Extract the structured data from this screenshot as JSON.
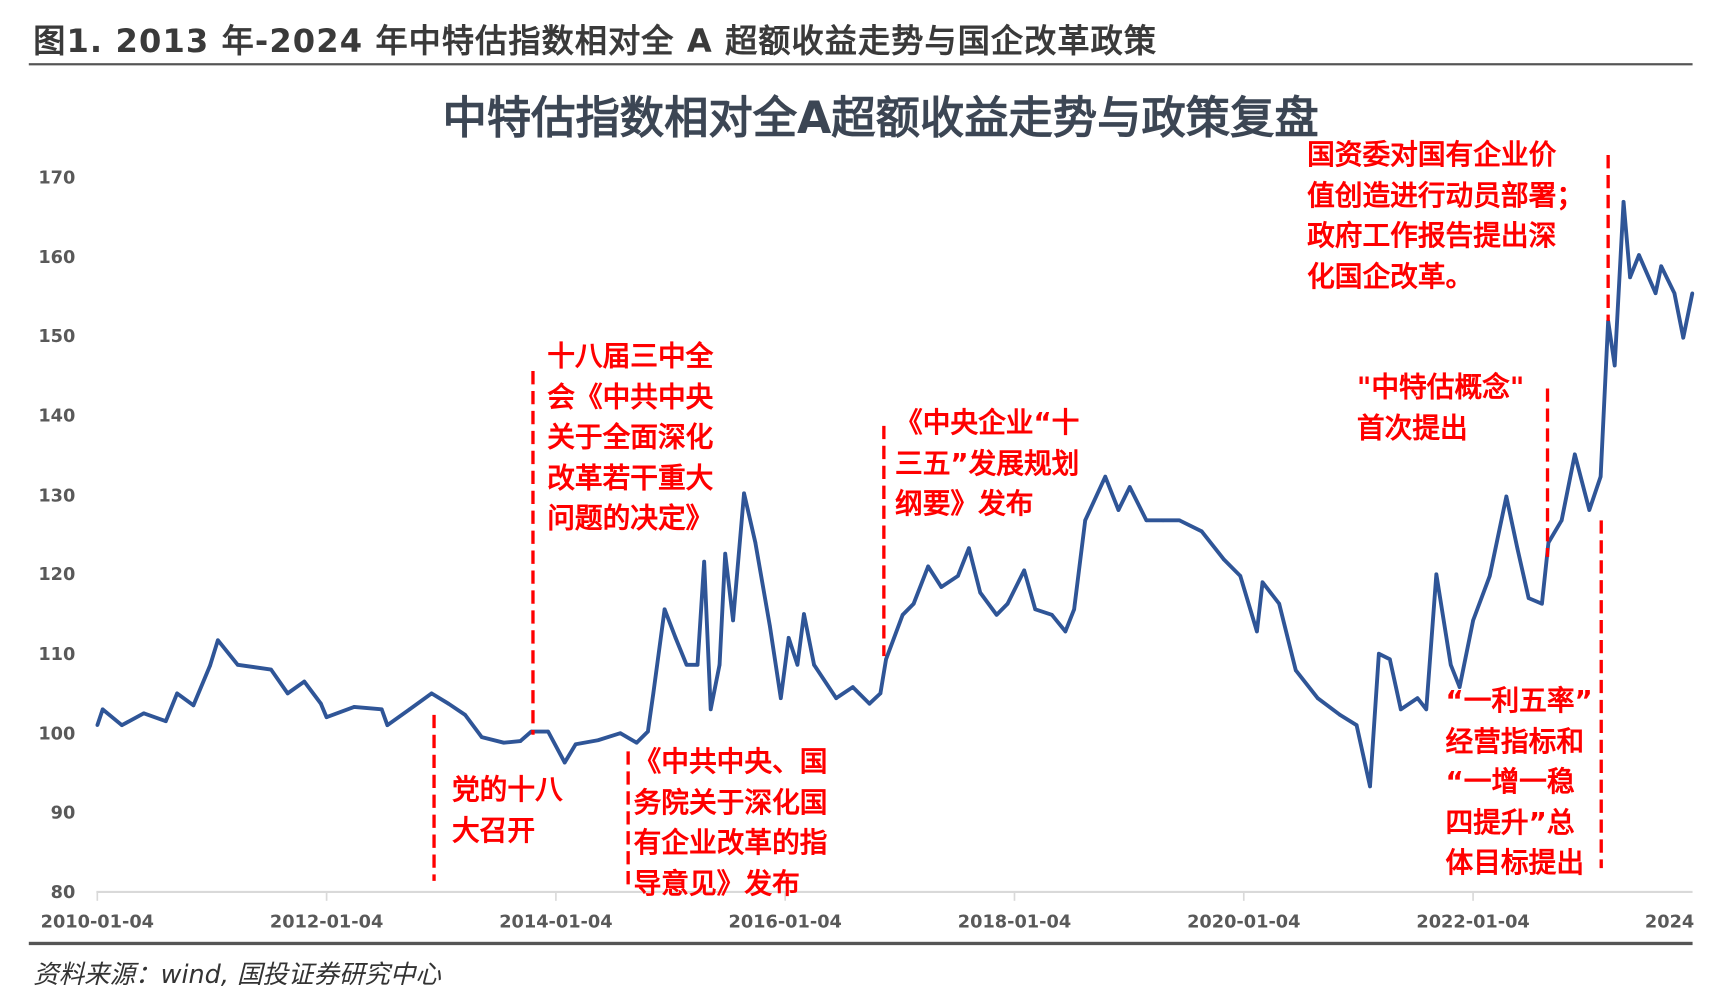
{
  "header": {
    "figure_title": "图1. 2013 年-2024 年中特估指数相对全 A 超额收益走势与国企改革政策"
  },
  "footer": {
    "source": "资料来源：wind, 国投证券研究中心"
  },
  "colors": {
    "series": "#2f5597",
    "annotation": "#ff0000",
    "axis": "#d9d9d9",
    "text": "#595959"
  },
  "chart_data": {
    "type": "line",
    "title": "中特估指数相对全A超额收益走势与政策复盘",
    "xlabel": "",
    "ylabel": "",
    "ylim": [
      80,
      170
    ],
    "yticks": [
      "80",
      "90",
      "100",
      "110",
      "120",
      "130",
      "140",
      "150",
      "160",
      "170"
    ],
    "xticks": [
      {
        "date": "2010-01-04",
        "label": "2010-01-04"
      },
      {
        "date": "2012-01-04",
        "label": "2012-01-04"
      },
      {
        "date": "2014-01-04",
        "label": "2014-01-04"
      },
      {
        "date": "2016-01-04",
        "label": "2016-01-04"
      },
      {
        "date": "2018-01-04",
        "label": "2018-01-04"
      },
      {
        "date": "2020-01-04",
        "label": "2020-01-04"
      },
      {
        "date": "2022-01-04",
        "label": "2022-01-04"
      },
      {
        "date": "2024-01-04",
        "label": "2024"
      }
    ],
    "grid": false,
    "legend": "none",
    "series": [
      {
        "points": [
          [
            "2010-01-04",
            101
          ],
          [
            "2010-01-21",
            103
          ],
          [
            "2010-03-23",
            101
          ],
          [
            "2010-06-01",
            102.5
          ],
          [
            "2010-08-10",
            101.5
          ],
          [
            "2010-09-15",
            105
          ],
          [
            "2010-11-06",
            103.5
          ],
          [
            "2010-12-29",
            108.5
          ],
          [
            "2011-01-23",
            111.7
          ],
          [
            "2011-03-27",
            108.6
          ],
          [
            "2011-07-11",
            108
          ],
          [
            "2011-09-02",
            105
          ],
          [
            "2011-10-25",
            106.5
          ],
          [
            "2011-12-17",
            103.7
          ],
          [
            "2012-01-04",
            102
          ],
          [
            "2012-04-01",
            103.3
          ],
          [
            "2012-06-28",
            103
          ],
          [
            "2012-07-16",
            101
          ],
          [
            "2012-09-25",
            103
          ],
          [
            "2012-12-04",
            105
          ],
          [
            "2013-01-27",
            103.7
          ],
          [
            "2013-03-21",
            102.3
          ],
          [
            "2013-05-13",
            99.5
          ],
          [
            "2013-07-22",
            98.8
          ],
          [
            "2013-09-13",
            99
          ],
          [
            "2013-10-18",
            100.2
          ],
          [
            "2013-12-10",
            100.2
          ],
          [
            "2014-02-01",
            96.3
          ],
          [
            "2014-03-08",
            98.6
          ],
          [
            "2014-05-18",
            99.1
          ],
          [
            "2014-07-28",
            100
          ],
          [
            "2014-09-18",
            98.8
          ],
          [
            "2014-10-24",
            100.2
          ],
          [
            "2014-11-10",
            105
          ],
          [
            "2014-12-16",
            115.6
          ],
          [
            "2015-01-20",
            112
          ],
          [
            "2015-02-24",
            108.6
          ],
          [
            "2015-03-31",
            108.6
          ],
          [
            "2015-04-21",
            121.6
          ],
          [
            "2015-05-12",
            103
          ],
          [
            "2015-06-09",
            108.6
          ],
          [
            "2015-06-27",
            122.6
          ],
          [
            "2015-07-22",
            114.2
          ],
          [
            "2015-08-26",
            130.2
          ],
          [
            "2015-10-01",
            124
          ],
          [
            "2015-11-16",
            113.5
          ],
          [
            "2015-12-21",
            104.4
          ],
          [
            "2016-01-15",
            112
          ],
          [
            "2016-02-12",
            108.6
          ],
          [
            "2016-03-04",
            115
          ],
          [
            "2016-04-05",
            108.6
          ],
          [
            "2016-06-15",
            104.4
          ],
          [
            "2016-08-07",
            105.8
          ],
          [
            "2016-09-29",
            103.7
          ],
          [
            "2016-11-03",
            105
          ],
          [
            "2016-11-21",
            109.3
          ],
          [
            "2017-01-13",
            114.9
          ],
          [
            "2017-02-17",
            116.3
          ],
          [
            "2017-04-04",
            121
          ],
          [
            "2017-05-16",
            118.4
          ],
          [
            "2017-07-08",
            119.8
          ],
          [
            "2017-08-12",
            123.3
          ],
          [
            "2017-09-17",
            117.7
          ],
          [
            "2017-11-08",
            114.9
          ],
          [
            "2017-12-13",
            116.3
          ],
          [
            "2018-02-04",
            120.5
          ],
          [
            "2018-03-11",
            115.6
          ],
          [
            "2018-05-03",
            114.9
          ],
          [
            "2018-06-15",
            112.8
          ],
          [
            "2018-07-13",
            115.6
          ],
          [
            "2018-08-17",
            126.8
          ],
          [
            "2018-10-20",
            132.3
          ],
          [
            "2018-12-01",
            128.1
          ],
          [
            "2019-01-06",
            131
          ],
          [
            "2019-02-28",
            126.8
          ],
          [
            "2019-04-22",
            126.8
          ],
          [
            "2019-06-13",
            126.8
          ],
          [
            "2019-08-23",
            125.4
          ],
          [
            "2019-11-01",
            121.9
          ],
          [
            "2019-12-24",
            119.8
          ],
          [
            "2020-02-15",
            112.8
          ],
          [
            "2020-03-04",
            119
          ],
          [
            "2020-04-26",
            116.3
          ],
          [
            "2020-06-18",
            107.9
          ],
          [
            "2020-08-27",
            104.4
          ],
          [
            "2020-11-06",
            102.3
          ],
          [
            "2020-12-29",
            101
          ],
          [
            "2021-02-10",
            93.3
          ],
          [
            "2021-03-10",
            110
          ],
          [
            "2021-04-14",
            109.3
          ],
          [
            "2021-05-19",
            103
          ],
          [
            "2021-07-11",
            104.4
          ],
          [
            "2021-08-08",
            103
          ],
          [
            "2021-09-09",
            120
          ],
          [
            "2021-10-25",
            108.6
          ],
          [
            "2021-11-22",
            105.8
          ],
          [
            "2022-01-04",
            114.2
          ],
          [
            "2022-02-26",
            119.8
          ],
          [
            "2022-04-20",
            129.8
          ],
          [
            "2022-05-25",
            123.3
          ],
          [
            "2022-06-30",
            117
          ],
          [
            "2022-08-11",
            116.3
          ],
          [
            "2022-09-01",
            124
          ],
          [
            "2022-10-13",
            126.8
          ],
          [
            "2022-11-24",
            135.1
          ],
          [
            "2023-01-09",
            128.1
          ],
          [
            "2023-02-14",
            132.3
          ],
          [
            "2023-03-10",
            151.9
          ],
          [
            "2023-03-31",
            146.3
          ],
          [
            "2023-04-28",
            166.9
          ],
          [
            "2023-05-19",
            157.4
          ],
          [
            "2023-06-16",
            160.2
          ],
          [
            "2023-08-08",
            155.4
          ],
          [
            "2023-08-26",
            158.8
          ],
          [
            "2023-10-07",
            155.4
          ],
          [
            "2023-11-04",
            149.8
          ],
          [
            "2023-12-03",
            155.4
          ]
        ]
      }
    ],
    "annotations": [
      {
        "date": "2012-12-12",
        "from": 102.3,
        "to": 81.4,
        "lines": [
          "党的十八",
          "大召开"
        ]
      },
      {
        "date": "2013-10-23",
        "from": 145.6,
        "to": 99.8,
        "lines": [
          "十八届三中全",
          "会《中共中央",
          "关于全面深化",
          "改革若干重大",
          "问题的决定》"
        ]
      },
      {
        "date": "2014-08-22",
        "from": 97.7,
        "to": 80.9,
        "lines": [
          "《中共中央、国",
          "务院关于深化国",
          "有企业改革的指",
          "导意见》发布"
        ]
      },
      {
        "date": "2016-11-14",
        "from": 138.7,
        "to": 109.7,
        "lines": [
          "《中央企业“十",
          "三五”发展规划",
          "纲要》发布"
        ]
      },
      {
        "date": "2022-08-29",
        "from": 143.4,
        "to": 122.2,
        "lines": [
          "\"中特估概念\"",
          "首次提出"
        ]
      },
      {
        "date": "2023-02-16",
        "from": 126.8,
        "to": 83,
        "lines": [
          "“一利五率”",
          "经营指标和",
          "“一增一稳",
          "四提升”总",
          "体目标提出"
        ]
      },
      {
        "date": "2023-03-10",
        "from": 172.8,
        "to": 151.9,
        "lines": [
          "国资委对国有企业价",
          "值创造进行动员部署；",
          "政府工作报告提出深",
          "化国企改革。"
        ]
      }
    ]
  }
}
